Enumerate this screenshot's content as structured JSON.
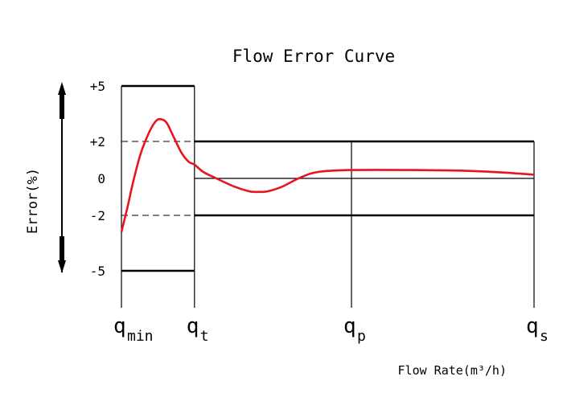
{
  "chart_data": {
    "type": "line",
    "title": "Flow Error Curve",
    "ylabel": "Error(%)",
    "xlabel": "Flow Rate(m³/h)",
    "x_ticks": [
      {
        "key": "qmin",
        "main": "q",
        "sub": "min",
        "pos": 0
      },
      {
        "key": "qt",
        "main": "q",
        "sub": "t",
        "pos": 1
      },
      {
        "key": "qp",
        "main": "q",
        "sub": "p",
        "pos": 3.15
      },
      {
        "key": "qs",
        "main": "q",
        "sub": "s",
        "pos": 5.65
      }
    ],
    "x_range": [
      0,
      5.65
    ],
    "y_ticks": [
      {
        "label": "+5",
        "value": 5
      },
      {
        "label": "+2",
        "value": 2
      },
      {
        "label": "0",
        "value": 0
      },
      {
        "label": "-2",
        "value": -2
      },
      {
        "label": "-5",
        "value": -5
      }
    ],
    "y_range": [
      -7,
      5
    ],
    "limits": {
      "low_zone": {
        "x": [
          0,
          1
        ],
        "upper": 5,
        "lower": -5
      },
      "high_zone": {
        "x": [
          1,
          5.65
        ],
        "upper": 2,
        "lower": -2
      }
    },
    "series": [
      {
        "color": "#e8141e",
        "points": [
          [
            0.0,
            -2.9
          ],
          [
            0.08,
            -1.6
          ],
          [
            0.16,
            -0.2
          ],
          [
            0.26,
            1.3
          ],
          [
            0.38,
            2.5
          ],
          [
            0.47,
            3.1
          ],
          [
            0.54,
            3.2
          ],
          [
            0.62,
            3.0
          ],
          [
            0.72,
            2.2
          ],
          [
            0.82,
            1.4
          ],
          [
            0.92,
            0.9
          ],
          [
            1.0,
            0.75
          ],
          [
            1.12,
            0.35
          ],
          [
            1.3,
            0.0
          ],
          [
            1.55,
            -0.45
          ],
          [
            1.75,
            -0.7
          ],
          [
            1.85,
            -0.73
          ],
          [
            2.0,
            -0.7
          ],
          [
            2.2,
            -0.45
          ],
          [
            2.45,
            0.05
          ],
          [
            2.7,
            0.35
          ],
          [
            3.15,
            0.45
          ],
          [
            4.0,
            0.45
          ],
          [
            4.8,
            0.4
          ],
          [
            5.3,
            0.3
          ],
          [
            5.65,
            0.2
          ]
        ]
      }
    ]
  }
}
